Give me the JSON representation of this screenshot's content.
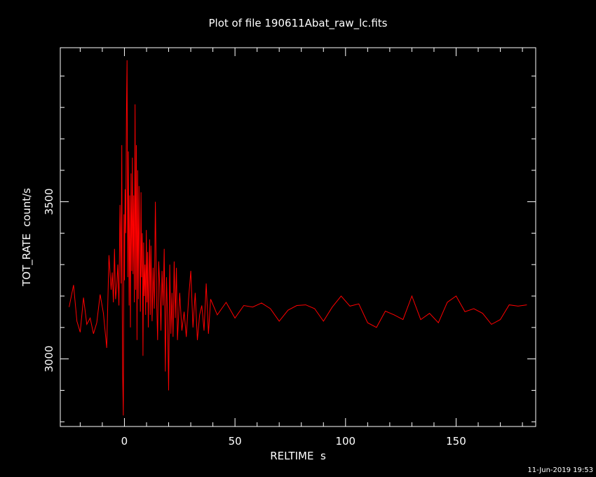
{
  "page": {
    "title": "Plot of file 190611Abat_raw_lc.fits",
    "timestamp": "11-Jun-2019 19:53"
  },
  "chart_data": {
    "type": "line",
    "title": "Plot of file 190611Abat_raw_lc.fits",
    "xlabel": "RELTIME  s",
    "ylabel": "TOT_RATE  count/s",
    "xlim": [
      -29,
      186
    ],
    "ylim": [
      2785,
      3990
    ],
    "x_ticks": [
      0,
      50,
      100,
      150
    ],
    "x_tick_labels": [
      "0",
      "50",
      "100",
      "150"
    ],
    "y_ticks": [
      3000,
      3500
    ],
    "y_tick_labels": [
      "3000",
      "3500"
    ],
    "grid": false,
    "line_color": "#ff0000",
    "background": "#000000",
    "series": [
      {
        "x": [
          -25,
          -23,
          -21.5,
          -20,
          -18.5,
          -17,
          -15.5,
          -14,
          -12.5,
          -11,
          -9.5,
          -8,
          -7,
          -6,
          -5.5,
          -5,
          -4.5,
          -4,
          -3.5,
          -3,
          -2.5,
          -2,
          -1.5,
          -1.2,
          -1,
          -0.8,
          -0.5,
          -0.2,
          0,
          0.3,
          0.6,
          0.9,
          1.2,
          1.5,
          1.8,
          2.1,
          2.4,
          2.7,
          3,
          3.3,
          3.6,
          3.9,
          4.2,
          4.5,
          4.8,
          5.1,
          5.4,
          5.7,
          6,
          6.3,
          6.6,
          6.9,
          7.2,
          7.5,
          7.8,
          8.1,
          8.4,
          8.7,
          9,
          9.3,
          9.6,
          9.9,
          10.2,
          10.5,
          10.8,
          11.1,
          11.4,
          11.7,
          12,
          12.5,
          13,
          13.5,
          14,
          14.5,
          15,
          15.5,
          16,
          16.5,
          17,
          17.5,
          18,
          18.5,
          19,
          19.5,
          20,
          20.5,
          21,
          21.5,
          22,
          22.5,
          23,
          23.5,
          24,
          25,
          26,
          27,
          28,
          29,
          30,
          31,
          32,
          33,
          34,
          35,
          36,
          37,
          38,
          39,
          42,
          46,
          50,
          54,
          58,
          62,
          66,
          70,
          74,
          78,
          82,
          86,
          90,
          94,
          98,
          102,
          106,
          110,
          114,
          118,
          122,
          126,
          130,
          134,
          138,
          142,
          146,
          150,
          154,
          158,
          162,
          166,
          170,
          174,
          178,
          182
        ],
        "y": [
          3165,
          3235,
          3120,
          3085,
          3195,
          3110,
          3130,
          3080,
          3115,
          3205,
          3145,
          3035,
          3330,
          3220,
          3275,
          3180,
          3350,
          3190,
          3230,
          3300,
          3170,
          3490,
          3240,
          3680,
          3180,
          2950,
          2820,
          3460,
          3250,
          3540,
          3400,
          3770,
          3950,
          3260,
          3660,
          3170,
          3520,
          3100,
          3590,
          3280,
          3640,
          3270,
          3520,
          3180,
          3810,
          3220,
          3680,
          3060,
          3600,
          3190,
          3550,
          3320,
          3150,
          3530,
          3260,
          3400,
          3010,
          3370,
          3200,
          3300,
          3140,
          3410,
          3180,
          3340,
          3100,
          3270,
          3380,
          3140,
          3360,
          3120,
          3290,
          3160,
          3500,
          3200,
          3060,
          3310,
          3230,
          3090,
          3280,
          3170,
          3350,
          2960,
          3260,
          3140,
          2900,
          3300,
          3080,
          3210,
          3070,
          3310,
          3130,
          3290,
          3060,
          3210,
          3090,
          3150,
          3070,
          3190,
          3280,
          3100,
          3210,
          3060,
          3140,
          3170,
          3090,
          3240,
          3080,
          3190,
          3140,
          3180,
          3130,
          3170,
          3165,
          3178,
          3160,
          3120,
          3155,
          3170,
          3172,
          3160,
          3120,
          3165,
          3200,
          3168,
          3175,
          3115,
          3100,
          3152,
          3140,
          3125,
          3200,
          3125,
          3145,
          3115,
          3180,
          3200,
          3150,
          3160,
          3145,
          3110,
          3125,
          3172,
          3168,
          3172
        ]
      }
    ]
  }
}
